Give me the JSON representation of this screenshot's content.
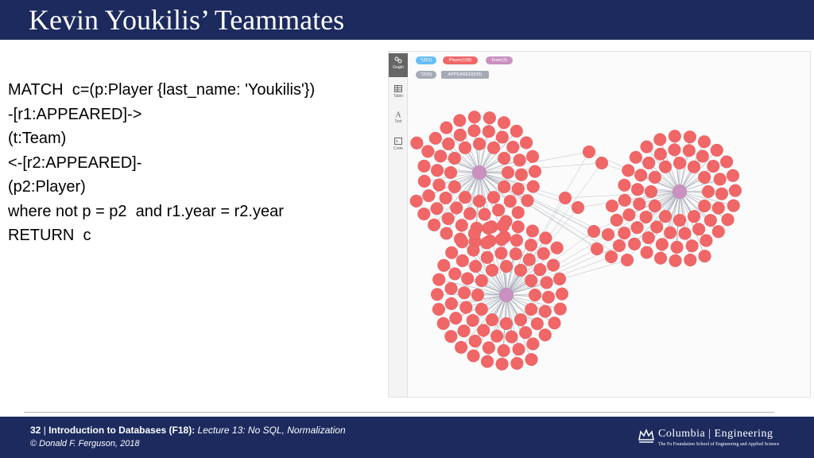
{
  "slide": {
    "title": "Kevin Youkilis’ Teammates"
  },
  "query": {
    "lines": [
      "MATCH  c=(p:Player {last_name: 'Youkilis'})",
      "-[r1:APPEARED]->",
      "(t:Team)",
      "<-[r2:APPEARED]-",
      "(p2:Player)",
      "where not p = p2  and r1.year = r2.year",
      "RETURN  c"
    ]
  },
  "browser": {
    "sidebar": [
      {
        "label": "Graph",
        "icon": "graph-icon",
        "active": true
      },
      {
        "label": "Table",
        "icon": "table-icon",
        "active": false
      },
      {
        "label": "Text",
        "icon": "text-icon",
        "active": false
      },
      {
        "label": "Code",
        "icon": "code-icon",
        "active": false
      }
    ],
    "node_labels": [
      {
        "text": "*(201)",
        "color": "#68bdf6"
      },
      {
        "text": "Player(198)",
        "color": "#f16667"
      },
      {
        "text": "Team(3)",
        "color": "#c990c0"
      }
    ],
    "relationship_labels": [
      {
        "text": "*(535)",
        "color": "#a5abb6"
      },
      {
        "text": "APPEARED(535)",
        "color": "#a5abb6"
      }
    ],
    "colors": {
      "player_node": "#f16667",
      "team_node": "#c990c0",
      "relationship": "#a5abb6"
    }
  },
  "footer": {
    "page": "32",
    "separator": "|",
    "course": "Introduction to Databases (F18):",
    "lecture": "Lecture 13: No SQL, Normalization",
    "copyright": "© Donald F. Ferguson, 2018",
    "logo_name": "Columbia | Engineering",
    "logo_sub": "The Fu Foundation School of Engineering and Applied Science"
  }
}
